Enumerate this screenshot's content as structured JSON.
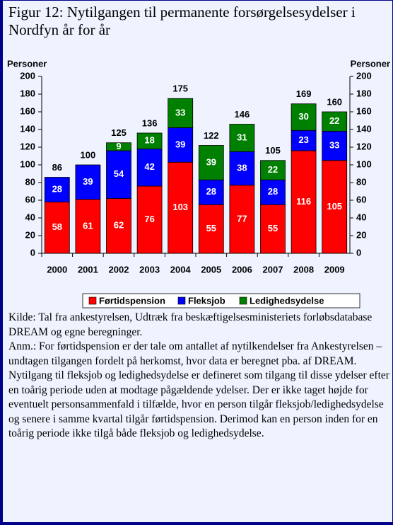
{
  "chart_data": {
    "type": "stacked_bar",
    "title": "Figur 12: Nytilgangen til permanente forsørgelsesydelser i Nordfyn år for år",
    "y_label": "Personer",
    "y2_label": "Personer",
    "categories": [
      "2000",
      "2001",
      "2002",
      "2003",
      "2004",
      "2005",
      "2006",
      "2007",
      "2008",
      "2009"
    ],
    "series": [
      {
        "name": "Førtidspension",
        "color": "#ff0000",
        "values": [
          58,
          61,
          62,
          76,
          103,
          55,
          77,
          55,
          116,
          105
        ]
      },
      {
        "name": "Fleksjob",
        "color": "#0000ff",
        "values": [
          28,
          39,
          54,
          42,
          39,
          28,
          38,
          28,
          23,
          33
        ]
      },
      {
        "name": "Ledighedsydelse",
        "color": "#008000",
        "values": [
          null,
          null,
          9,
          18,
          33,
          39,
          31,
          22,
          30,
          22
        ]
      }
    ],
    "totals": [
      86,
      100,
      125,
      136,
      175,
      122,
      146,
      105,
      169,
      160
    ],
    "ylim": [
      0,
      200
    ],
    "yticks": [
      0,
      20,
      40,
      60,
      80,
      100,
      120,
      140,
      160,
      180,
      200
    ],
    "y2lim": [
      0,
      200
    ],
    "y2ticks": [
      0,
      20,
      40,
      60,
      80,
      100,
      120,
      140,
      160,
      180,
      200
    ],
    "legend": "bottom",
    "source": "Kilde: Tal fra ankestyrelsen, Udtræk fra beskæftigelsesministeriets forløbsdatabase DREAM og egne beregninger.",
    "note": "Anm.: For førtidspension er der tale om antallet af nytilkendelser fra Ankestyrelsen – undtagen tilgangen fordelt på herkomst, hvor data er beregnet pba. af DREAM. Nytilgang til fleksjob og ledighedsydelse er defineret som tilgang til disse ydelser efter en toårig periode uden at modtage pågældende ydelser. Der er ikke taget højde for eventuelt personsammenfald i tilfælde, hvor en person tilgår fleksjob/ledighedsydelse og senere i samme kvartal tilgår førtidspension. Derimod kan en person inden for en toårig periode ikke tilgå både fleksjob og ledighedsydelse."
  }
}
